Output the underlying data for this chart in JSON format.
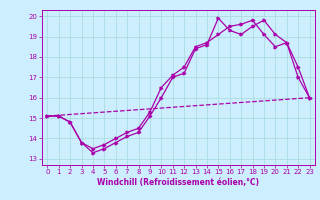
{
  "xlabel": "Windchill (Refroidissement éolien,°C)",
  "xlim": [
    -0.5,
    23.5
  ],
  "ylim": [
    12.7,
    20.3
  ],
  "yticks": [
    13,
    14,
    15,
    16,
    17,
    18,
    19,
    20
  ],
  "xticks": [
    0,
    1,
    2,
    3,
    4,
    5,
    6,
    7,
    8,
    9,
    10,
    11,
    12,
    13,
    14,
    15,
    16,
    17,
    18,
    19,
    20,
    21,
    22,
    23
  ],
  "background_color": "#cceeff",
  "grid_color": "#aadddd",
  "line_color": "#aa00aa",
  "line1_x": [
    0,
    1,
    2,
    3,
    4,
    5,
    6,
    7,
    8,
    9,
    10,
    11,
    12,
    13,
    14,
    15,
    16,
    17,
    18,
    19,
    20,
    21,
    22,
    23
  ],
  "line1_y": [
    15.1,
    15.1,
    14.8,
    13.8,
    13.3,
    13.5,
    13.8,
    14.1,
    14.3,
    15.1,
    16.0,
    17.0,
    17.2,
    18.4,
    18.6,
    19.9,
    19.3,
    19.1,
    19.5,
    19.8,
    19.1,
    18.7,
    17.0,
    16.0
  ],
  "line2_x": [
    0,
    1,
    2,
    3,
    4,
    5,
    6,
    7,
    8,
    9,
    10,
    11,
    12,
    13,
    14,
    15,
    16,
    17,
    18,
    19,
    20,
    21,
    22,
    23
  ],
  "line2_y": [
    15.1,
    15.1,
    14.8,
    13.8,
    13.5,
    13.7,
    14.0,
    14.3,
    14.5,
    15.3,
    16.5,
    17.1,
    17.5,
    18.5,
    18.7,
    19.1,
    19.5,
    19.6,
    19.8,
    19.1,
    18.5,
    18.7,
    17.5,
    16.0
  ],
  "line3_x": [
    0,
    23
  ],
  "line3_y": [
    15.1,
    16.0
  ]
}
